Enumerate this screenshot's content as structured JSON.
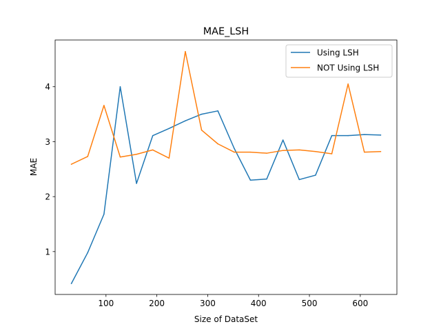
{
  "chart_data": {
    "type": "line",
    "title": "MAE_LSH",
    "xlabel": "Size of DataSet",
    "ylabel": "MAE",
    "xlim": [
      0,
      672
    ],
    "ylim": [
      0.22,
      4.85
    ],
    "xticks": [
      100,
      200,
      300,
      400,
      500,
      600
    ],
    "yticks": [
      1,
      2,
      3,
      4
    ],
    "grid": false,
    "legend_position": "top-right",
    "x": [
      32,
      64,
      96,
      128,
      160,
      192,
      224,
      256,
      288,
      320,
      352,
      384,
      416,
      448,
      480,
      512,
      544,
      576,
      608,
      640
    ],
    "series": [
      {
        "name": "Using LSH",
        "color": "#1f77b4",
        "values": [
          0.42,
          0.98,
          1.68,
          4.0,
          2.24,
          3.11,
          3.24,
          3.38,
          3.5,
          3.56,
          2.88,
          2.3,
          2.32,
          3.03,
          2.31,
          2.39,
          3.11,
          3.11,
          3.13,
          3.12
        ]
      },
      {
        "name": "NOT Using LSH",
        "color": "#ff7f0e",
        "values": [
          2.59,
          2.73,
          3.66,
          2.72,
          2.77,
          2.85,
          2.7,
          4.64,
          3.21,
          2.96,
          2.81,
          2.81,
          2.79,
          2.84,
          2.85,
          2.82,
          2.78,
          4.05,
          2.81,
          2.82
        ]
      }
    ]
  }
}
